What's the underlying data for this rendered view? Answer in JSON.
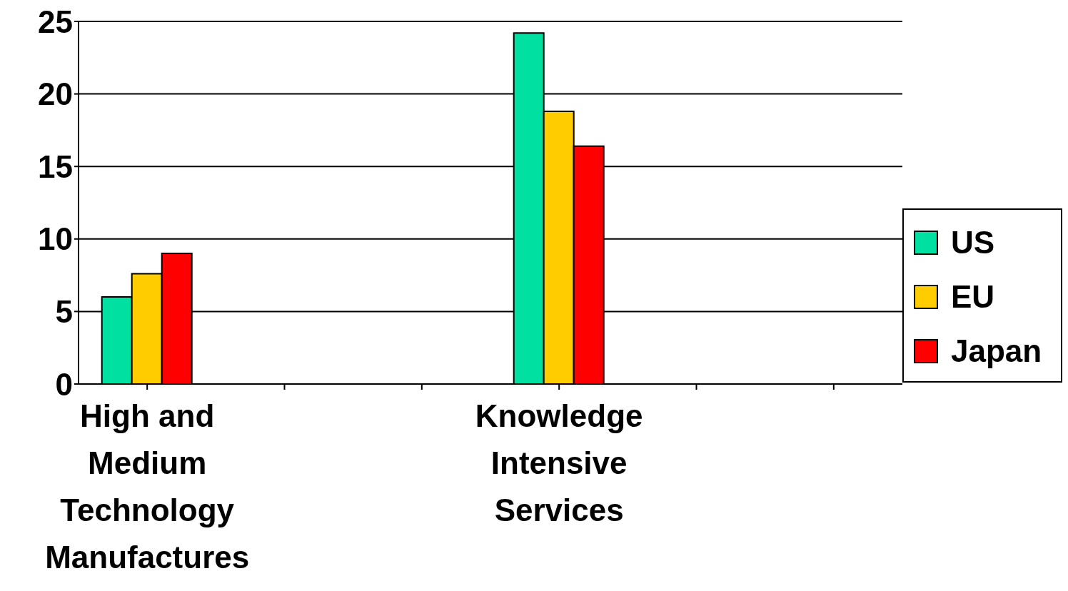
{
  "chart_data": {
    "type": "bar",
    "categories": [
      "High and Medium Technology Manufactures",
      null,
      null,
      "Knowledge Intensive Services",
      null,
      null
    ],
    "series": [
      {
        "name": "US",
        "color": "#00e0a0",
        "values": [
          6.0,
          null,
          null,
          24.2,
          null,
          null
        ]
      },
      {
        "name": "EU",
        "color": "#ffcc00",
        "values": [
          7.6,
          null,
          null,
          18.8,
          null,
          null
        ]
      },
      {
        "name": "Japan",
        "color": "#ff0000",
        "values": [
          9.0,
          null,
          null,
          16.4,
          null,
          null
        ]
      }
    ],
    "ylim": [
      0,
      25
    ],
    "yticks": [
      0,
      5,
      10,
      15,
      20,
      25
    ],
    "grid": "y",
    "legend": "right"
  }
}
